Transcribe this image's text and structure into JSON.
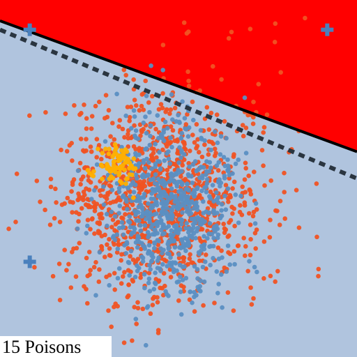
{
  "caption": "15 Poisons",
  "colors": {
    "region_lower": "#b0c4de",
    "region_upper": "#ff0000",
    "clean_points": "#f05323",
    "other_points": "#5b8fc2",
    "poison_points": "#ffb000",
    "boundary_solid": "#000000",
    "boundary_dashed": "#2a3540",
    "marker": "#4a80bd"
  },
  "chart_data": {
    "type": "scatter",
    "title": "",
    "xlabel": "",
    "ylabel": "",
    "xlim": [
      -3,
      3
    ],
    "ylim": [
      -3,
      3
    ],
    "grid": false,
    "legend": "none",
    "decision_boundaries": [
      {
        "style": "solid",
        "x": [
          -3,
          3
        ],
        "y": [
          2.65,
          0.45
        ]
      },
      {
        "style": "dashed",
        "x": [
          -3,
          3
        ],
        "y": [
          2.5,
          0.0
        ]
      }
    ],
    "class_centers": [
      {
        "x": -2.5,
        "y": 2.5
      },
      {
        "x": 2.5,
        "y": 2.5
      },
      {
        "x": -2.5,
        "y": -1.4
      }
    ],
    "series": [
      {
        "center": [
          -0.3,
          -0.35
        ],
        "spread": [
          0.85,
          0.85
        ],
        "count": 1100,
        "seed": 7
      },
      {
        "center": [
          -0.1,
          -0.5
        ],
        "spread": [
          0.55,
          0.7
        ],
        "count": 700,
        "seed": 13
      },
      {
        "center": [
          -1.0,
          0.2
        ],
        "spread": [
          0.17,
          0.17
        ],
        "count": 85,
        "seed": 21
      },
      {
        "center": [
          1.0,
          2.2
        ],
        "spread": [
          0.8,
          0.5
        ],
        "count": 14,
        "seed": 31
      }
    ]
  }
}
